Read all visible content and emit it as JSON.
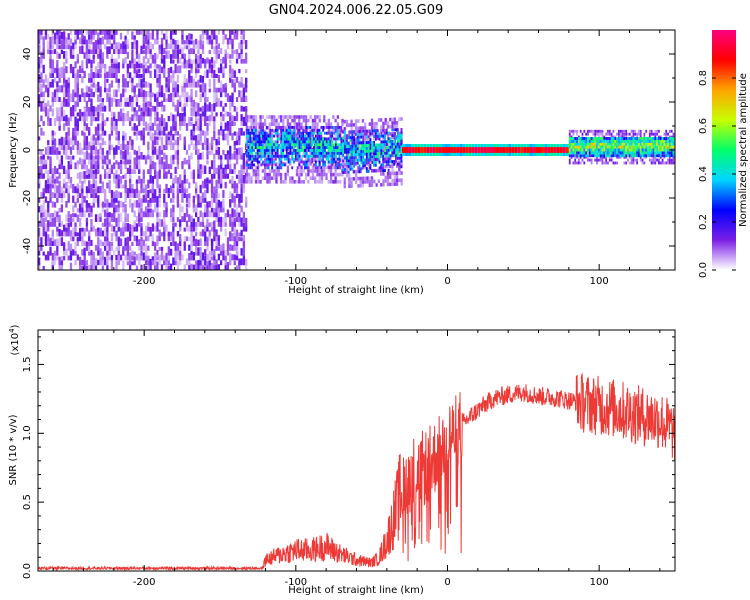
{
  "title": "GN04.2024.006.22.05.G09",
  "chart_data": [
    {
      "type": "heatmap",
      "xlabel": "Height of straight line (km)",
      "ylabel": "Frequency (Hz)",
      "xlim": [
        -270,
        150
      ],
      "ylim": [
        -50,
        50
      ],
      "xticks": [
        -200,
        -100,
        0,
        100
      ],
      "xtick_labels": [
        "-200",
        "-100",
        "0",
        "100"
      ],
      "yticks": [
        -40,
        -20,
        0,
        20,
        40
      ],
      "ytick_labels": [
        "-40",
        "-20",
        "0",
        "20",
        "40"
      ],
      "colorbar": {
        "label": "Normalized spectral amplitude",
        "range": [
          0,
          1
        ],
        "ticks": [
          0,
          0.2,
          0.4,
          0.6,
          0.8
        ],
        "tick_labels": [
          "0.0",
          "0.2",
          "0.4",
          "0.6",
          "0.8"
        ],
        "colormap": [
          "#ffffff",
          "#7a1fe6",
          "#0000ff",
          "#00d5ff",
          "#00ff6a",
          "#c8ff00",
          "#ffa500",
          "#ff0000",
          "#ff007f"
        ]
      },
      "regions": [
        {
          "x": [
            -270,
            -133
          ],
          "y": [
            -50,
            50
          ],
          "level": 0.15,
          "spread": "uniform noise"
        },
        {
          "x": [
            -133,
            -30
          ],
          "y": [
            -8,
            10
          ],
          "level": 0.4,
          "spread": "broad, noisy"
        },
        {
          "x": [
            -30,
            80
          ],
          "y": [
            -1,
            1
          ],
          "level": 0.9,
          "spread": "narrow line at 0 Hz"
        },
        {
          "x": [
            80,
            150
          ],
          "y": [
            -3,
            5
          ],
          "level": 0.6,
          "spread": "moderately broad"
        }
      ],
      "grid": false
    },
    {
      "type": "line",
      "xlabel": "Height of straight line (km)",
      "ylabel": "SNR (10 * v/v)",
      "y_scale_note": "(x10",
      "y_scale_exp": "4",
      "y_scale_close": ")",
      "xlim": [
        -270,
        150
      ],
      "ylim": [
        0,
        1.75
      ],
      "xticks": [
        -200,
        -100,
        0,
        100
      ],
      "xtick_labels": [
        "-200",
        "-100",
        "0",
        "100"
      ],
      "yticks": [
        0,
        0.5,
        1.0,
        1.5
      ],
      "ytick_labels": [
        "0.0",
        "0.5",
        "1.0",
        "1.5"
      ],
      "color": "#ee3a36",
      "grid": false,
      "series": [
        {
          "x": [
            -270,
            -250,
            -200,
            -150,
            -122,
            -120,
            -110,
            -100,
            -90,
            -80,
            -70,
            -60,
            -50,
            -45,
            -40,
            -35,
            -30,
            -25,
            -20,
            -15,
            -10,
            -5,
            0,
            5,
            10,
            20,
            30,
            40,
            50,
            60,
            70,
            80,
            90,
            100,
            110,
            120,
            130,
            140,
            150
          ],
          "y": [
            0.02,
            0.02,
            0.02,
            0.02,
            0.02,
            0.08,
            0.12,
            0.15,
            0.15,
            0.18,
            0.12,
            0.08,
            0.06,
            0.1,
            0.22,
            0.4,
            0.6,
            0.7,
            0.72,
            0.75,
            0.8,
            0.88,
            0.95,
            1.0,
            1.07,
            1.17,
            1.25,
            1.28,
            1.3,
            1.27,
            1.26,
            1.24,
            1.22,
            1.2,
            1.18,
            1.15,
            1.12,
            1.1,
            1.0
          ]
        }
      ]
    }
  ]
}
